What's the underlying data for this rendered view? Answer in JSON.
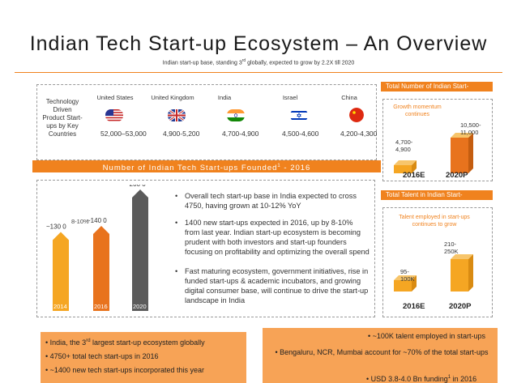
{
  "header": {
    "title": "Indian Tech Start-up Ecosystem – An Overview",
    "subtitle_pre": "Indian start-up base, standing 3",
    "subtitle_sup": "rd",
    "subtitle_post": " globally, expected to grow by 2.2X till 2020"
  },
  "countries": {
    "row_label": "Technology Driven Product Start-ups by Key Countries",
    "items": [
      {
        "name": "United States",
        "range": "52,000–53,000",
        "flag": "us-flag"
      },
      {
        "name": "United Kingdom",
        "range": "4,900-5,200",
        "flag": "uk-flag"
      },
      {
        "name": "India",
        "range": "4,700-4,900",
        "flag": "india-flag"
      },
      {
        "name": "Israel",
        "range": "4,500-4,600",
        "flag": "israel-flag"
      },
      {
        "name": "China",
        "range": "4,200-4,300",
        "flag": "china-flag"
      }
    ]
  },
  "founded_section": {
    "title": "Number of Indian Tech Start-ups Founded",
    "title_sup": "1",
    "title_post": " - 2016"
  },
  "chart_data": {
    "type": "bar",
    "categories": [
      "2014",
      "2016 (E)",
      "2020 (P)"
    ],
    "values": [
      130,
      140,
      200
    ],
    "data_labels": [
      "~130 0",
      "~140 0",
      "~200 0"
    ],
    "cagr_label": "8-10%",
    "colors": [
      "#f5a623",
      "#e8731d",
      "#5b5b5b"
    ]
  },
  "bullets": [
    "Overall tech start-up base in India expected to cross 4750, having grown at 10-12% YoY",
    "1400 new start-ups expected in 2016, up by 8-10% from last year. Indian start-up ecosystem is becoming prudent with both investors and start-up founders focusing on profitability and optimizing the overall spend",
    "Fast maturing ecosystem, government initiatives, rise in funded start-ups & academic incubators, and growing digital consumer base, will continue to drive the start-up landscape in India"
  ],
  "panel_startups": {
    "header": "Total Number of Indian Start-",
    "note": "Growth momentum continues",
    "bars": [
      {
        "year": "2016E",
        "value_label": "4,700-4,900",
        "value": 4800
      },
      {
        "year": "2020P",
        "value_label": "10,500-11,000",
        "value": 10750
      }
    ]
  },
  "panel_talent": {
    "header": "Total Talent in Indian Start-",
    "note": "Talent employed in start-ups continues to grow",
    "bars": [
      {
        "year": "2016E",
        "value_label": "95-100K",
        "value": 97.5
      },
      {
        "year": "2020P",
        "value_label": "210-250K",
        "value": 230
      }
    ]
  },
  "bottom_left": {
    "items": [
      {
        "pre": "India, the 3",
        "sup": "rd",
        "post": " largest start-up ecosystem globally"
      },
      {
        "pre": "4750+ total tech start-ups in 2016",
        "sup": "",
        "post": ""
      },
      {
        "pre": "~1400 new tech start-ups incorporated this year",
        "sup": "",
        "post": ""
      }
    ]
  },
  "bottom_right": {
    "items": [
      "~100K talent employed in start-ups",
      "Bengaluru, NCR, Mumbai account for ~70% of the total start-ups",
      "USD 3.8-4.0 Bn funding"
    ],
    "funding_sup": "1",
    "funding_post": " in 2016"
  },
  "colors": {
    "accent": "#f0821e",
    "light_accent": "#f7a356",
    "cube": "#f5a623",
    "dark_bar": "#5b5b5b"
  }
}
